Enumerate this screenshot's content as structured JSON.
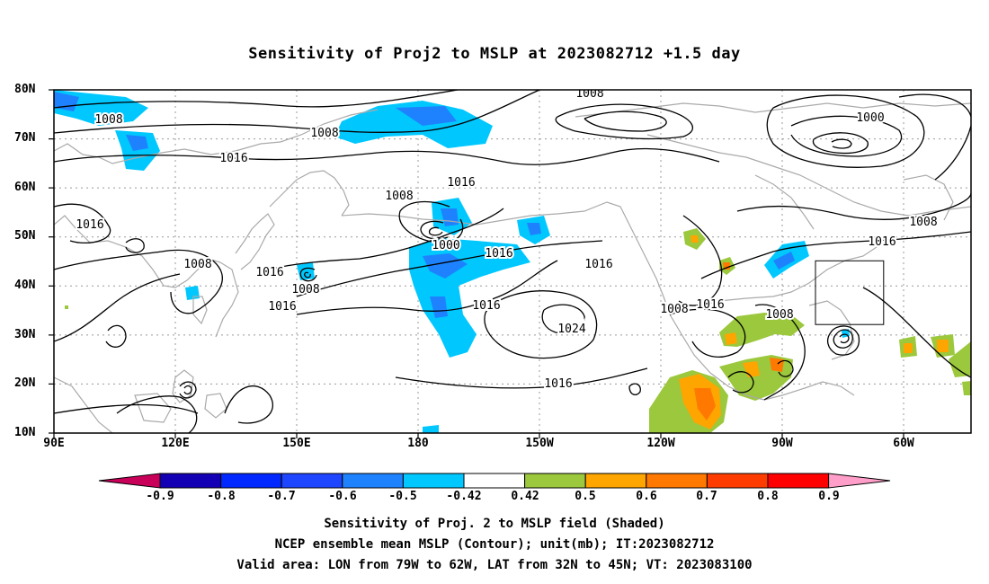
{
  "title": "Sensitivity of Proj2 to MSLP at 2023082712 +1.5 day",
  "map": {
    "lat_labels": [
      "80N",
      "70N",
      "60N",
      "50N",
      "40N",
      "30N",
      "20N",
      "10N"
    ],
    "lon_labels": [
      "90E",
      "120E",
      "150E",
      "180",
      "150W",
      "120W",
      "90W",
      "60W"
    ],
    "contour_labels": [
      {
        "text": "1008"
      },
      {
        "text": "1008"
      },
      {
        "text": "1008"
      },
      {
        "text": "1016"
      },
      {
        "text": "1016"
      },
      {
        "text": "1008"
      },
      {
        "text": "1016"
      },
      {
        "text": "1000"
      },
      {
        "text": "1016"
      },
      {
        "text": "1016"
      },
      {
        "text": "1024"
      },
      {
        "text": "1016"
      },
      {
        "text": "1008"
      },
      {
        "text": "1016"
      },
      {
        "text": "1008"
      },
      {
        "text": "1016"
      },
      {
        "text": "1008"
      },
      {
        "text": "1000"
      },
      {
        "text": "1016"
      },
      {
        "text": "1016"
      },
      {
        "text": "1008"
      },
      {
        "text": "1008"
      },
      {
        "text": "1016"
      }
    ],
    "valid_box": {
      "lon_min": -79,
      "lon_max": -62,
      "lat_min": 32,
      "lat_max": 45
    }
  },
  "colorbar": {
    "ticks": [
      "-0.9",
      "-0.8",
      "-0.7",
      "-0.6",
      "-0.5",
      "-0.42",
      "0.42",
      "0.5",
      "0.6",
      "0.7",
      "0.8",
      "0.9"
    ],
    "colors": [
      "#c8005a",
      "#1400b4",
      "#0028ff",
      "#1e46ff",
      "#1e82ff",
      "#00c8ff",
      "#ffffff",
      "#9bc83c",
      "#ffa500",
      "#ff7800",
      "#ff3c00",
      "#ff0000",
      "#ff9ec8"
    ]
  },
  "captions": [
    "Sensitivity of Proj. 2 to MSLP field (Shaded)",
    "NCEP ensemble mean MSLP (Contour); unit(mb); IT:2023082712",
    "Valid area: LON from 79W to 62W, LAT from 32N to 45N; VT: 2023083100"
  ]
}
